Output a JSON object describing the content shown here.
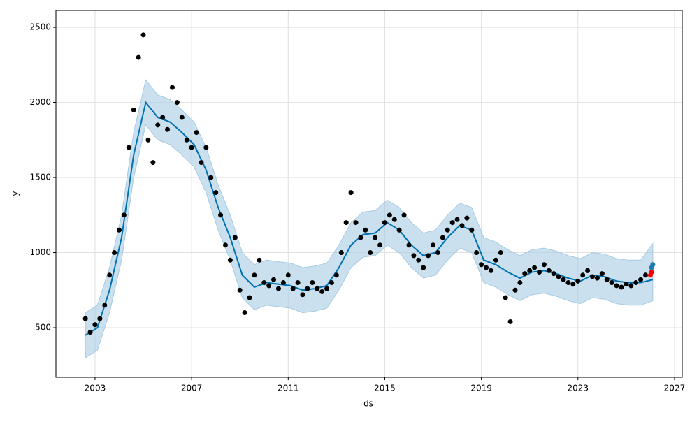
{
  "chart_data": {
    "type": "scatter",
    "xlabel": "ds",
    "ylabel": "y",
    "xlim": [
      2001.38,
      2027.32
    ],
    "ylim": [
      170,
      2612
    ],
    "xticks": [
      2003,
      2007,
      2011,
      2015,
      2019,
      2023,
      2027
    ],
    "yticks": [
      500,
      1000,
      1500,
      2000,
      2500
    ],
    "grid": true,
    "series": [
      {
        "type": "line",
        "color": "#0072b2",
        "band_color": "#a6cbe3",
        "x": [
          2002.6,
          2003.1,
          2003.6,
          2004.1,
          2004.6,
          2005.1,
          2005.6,
          2006.1,
          2006.6,
          2007.1,
          2007.6,
          2008.1,
          2008.6,
          2009.1,
          2009.6,
          2010.1,
          2010.6,
          2011.1,
          2011.6,
          2012.1,
          2012.6,
          2013.1,
          2013.6,
          2014.1,
          2014.6,
          2015.1,
          2015.6,
          2016.1,
          2016.6,
          2017.1,
          2017.6,
          2018.1,
          2018.6,
          2019.1,
          2019.6,
          2020.1,
          2020.6,
          2021.1,
          2021.6,
          2022.1,
          2022.6,
          2023.1,
          2023.6,
          2024.1,
          2024.6,
          2025.1,
          2025.6,
          2026.1
        ],
        "values": [
          450,
          500,
          750,
          1100,
          1650,
          2000,
          1900,
          1870,
          1800,
          1720,
          1550,
          1300,
          1100,
          850,
          770,
          800,
          790,
          780,
          750,
          760,
          780,
          900,
          1050,
          1120,
          1130,
          1200,
          1150,
          1050,
          980,
          1000,
          1100,
          1180,
          1150,
          950,
          920,
          870,
          830,
          870,
          880,
          860,
          830,
          810,
          850,
          840,
          810,
          800,
          800,
          820
        ],
        "lower": [
          300,
          350,
          600,
          950,
          1500,
          1850,
          1750,
          1720,
          1650,
          1570,
          1400,
          1150,
          950,
          700,
          620,
          650,
          640,
          630,
          600,
          610,
          630,
          750,
          900,
          970,
          980,
          1050,
          1000,
          900,
          830,
          850,
          950,
          1030,
          1000,
          800,
          770,
          720,
          680,
          720,
          730,
          710,
          680,
          660,
          700,
          690,
          660,
          650,
          650,
          680
        ],
        "upper": [
          600,
          650,
          900,
          1250,
          1800,
          2150,
          2050,
          2020,
          1950,
          1870,
          1700,
          1450,
          1250,
          1000,
          920,
          950,
          940,
          930,
          900,
          910,
          930,
          1050,
          1200,
          1270,
          1280,
          1350,
          1300,
          1200,
          1130,
          1150,
          1250,
          1330,
          1300,
          1100,
          1070,
          1020,
          980,
          1020,
          1030,
          1010,
          980,
          960,
          1000,
          990,
          960,
          950,
          950,
          1060
        ]
      },
      {
        "type": "scatter",
        "color": "#000000",
        "x": [
          2002.6,
          2002.8,
          2003.0,
          2003.2,
          2003.4,
          2003.6,
          2003.8,
          2004.0,
          2004.2,
          2004.4,
          2004.6,
          2004.8,
          2005.0,
          2005.2,
          2005.4,
          2005.6,
          2005.8,
          2006.0,
          2006.2,
          2006.4,
          2006.6,
          2006.8,
          2007.0,
          2007.2,
          2007.4,
          2007.6,
          2007.8,
          2008.0,
          2008.2,
          2008.4,
          2008.6,
          2008.8,
          2009.0,
          2009.2,
          2009.4,
          2009.6,
          2009.8,
          2010.0,
          2010.2,
          2010.4,
          2010.6,
          2010.8,
          2011.0,
          2011.2,
          2011.4,
          2011.6,
          2011.8,
          2012.0,
          2012.2,
          2012.4,
          2012.6,
          2012.8,
          2013.0,
          2013.2,
          2013.4,
          2013.6,
          2013.8,
          2014.0,
          2014.2,
          2014.4,
          2014.6,
          2014.8,
          2015.0,
          2015.2,
          2015.4,
          2015.6,
          2015.8,
          2016.0,
          2016.2,
          2016.4,
          2016.6,
          2016.8,
          2017.0,
          2017.2,
          2017.4,
          2017.6,
          2017.8,
          2018.0,
          2018.2,
          2018.4,
          2018.6,
          2018.8,
          2019.0,
          2019.2,
          2019.4,
          2019.6,
          2019.8,
          2020.0,
          2020.2,
          2020.4,
          2020.6,
          2020.8,
          2021.0,
          2021.2,
          2021.4,
          2021.6,
          2021.8,
          2022.0,
          2022.2,
          2022.4,
          2022.6,
          2022.8,
          2023.0,
          2023.2,
          2023.4,
          2023.6,
          2023.8,
          2024.0,
          2024.2,
          2024.4,
          2024.6,
          2024.8,
          2025.0,
          2025.2,
          2025.4,
          2025.6,
          2025.8
        ],
        "values": [
          560,
          470,
          520,
          560,
          650,
          850,
          1000,
          1150,
          1250,
          1700,
          1950,
          2300,
          2450,
          1750,
          1600,
          1850,
          1900,
          1820,
          2100,
          2000,
          1900,
          1750,
          1700,
          1800,
          1600,
          1700,
          1500,
          1400,
          1250,
          1050,
          950,
          1100,
          750,
          600,
          700,
          850,
          950,
          800,
          780,
          820,
          760,
          800,
          850,
          760,
          800,
          720,
          760,
          800,
          760,
          740,
          760,
          800,
          850,
          1000,
          1200,
          1400,
          1200,
          1100,
          1150,
          1000,
          1100,
          1050,
          1200,
          1250,
          1220,
          1150,
          1250,
          1050,
          980,
          950,
          900,
          980,
          1050,
          1000,
          1100,
          1150,
          1200,
          1220,
          1180,
          1230,
          1150,
          1000,
          920,
          900,
          880,
          950,
          1000,
          700,
          540,
          750,
          800,
          860,
          880,
          900,
          870,
          920,
          880,
          860,
          840,
          820,
          800,
          790,
          810,
          850,
          880,
          840,
          830,
          860,
          820,
          800,
          780,
          770,
          790,
          780,
          800,
          820,
          850
        ]
      },
      {
        "type": "scatter",
        "color": "#1f77b4",
        "x": [
          2026.05,
          2026.1
        ],
        "values": [
          900,
          920
        ]
      },
      {
        "type": "scatter",
        "color": "#ff0000",
        "x": [
          2026.0,
          2026.05
        ],
        "values": [
          850,
          870
        ]
      }
    ]
  }
}
